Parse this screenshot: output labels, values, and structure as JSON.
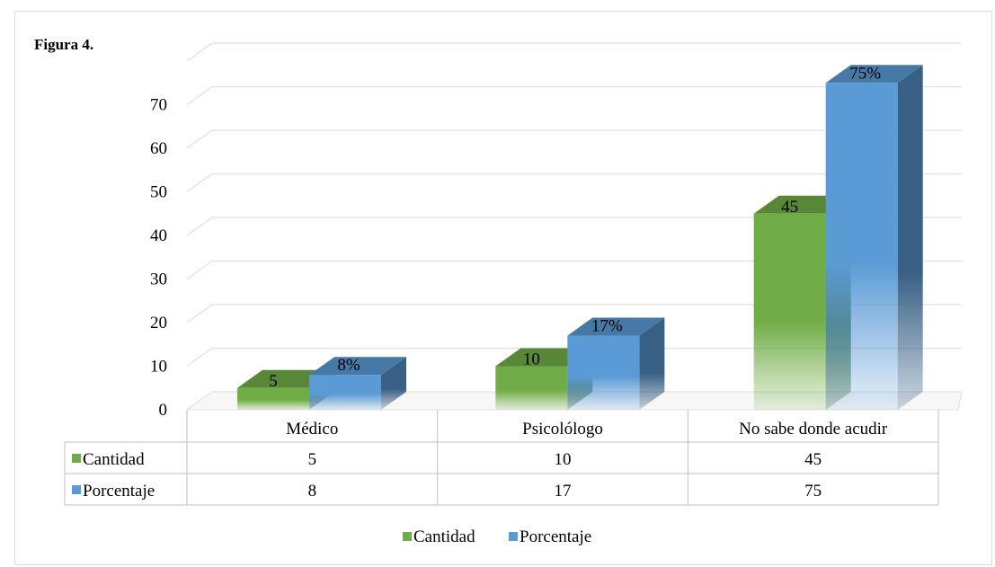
{
  "figure_label": "Figura 4.",
  "colors": {
    "cantidad": "#70ad47",
    "porcentaje": "#5b9bd5",
    "gridline": "#e0e0e0",
    "table_border": "#bfbfbf"
  },
  "chart_data": {
    "type": "bar",
    "style": "3d-clustered-column",
    "categories": [
      "Médico",
      "Psicolólogo",
      "No sabe donde acudir"
    ],
    "series": [
      {
        "name": "Cantidad",
        "values": [
          5,
          10,
          45
        ],
        "data_labels": [
          "5",
          "10",
          "45"
        ],
        "color": "#70ad47"
      },
      {
        "name": "Porcentaje",
        "values": [
          8,
          17,
          75
        ],
        "data_labels": [
          "8%",
          "17%",
          "75%"
        ],
        "color": "#5b9bd5"
      }
    ],
    "ylim": [
      0,
      80
    ],
    "yticks": [
      0,
      10,
      20,
      30,
      40,
      50,
      60,
      70
    ],
    "grid": true,
    "data_table": {
      "rows": [
        {
          "label": "Cantidad",
          "values": [
            "5",
            "10",
            "45"
          ]
        },
        {
          "label": "Porcentaje",
          "values": [
            "8",
            "17",
            "75"
          ]
        }
      ]
    },
    "legend": {
      "position": "bottom",
      "items": [
        "Cantidad",
        "Porcentaje"
      ]
    }
  }
}
